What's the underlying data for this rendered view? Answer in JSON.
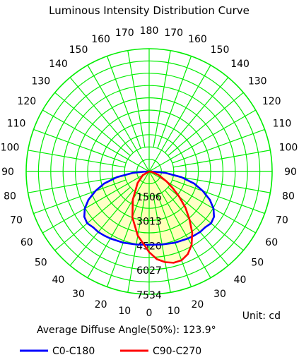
{
  "chart_data": {
    "type": "polar",
    "title": "Luminous Intensity Distribution Curve",
    "angle_labels": [
      {
        "deg": 0,
        "label": "0"
      },
      {
        "deg": 10,
        "label": "10"
      },
      {
        "deg": 20,
        "label": "20"
      },
      {
        "deg": 30,
        "label": "30"
      },
      {
        "deg": 40,
        "label": "40"
      },
      {
        "deg": 50,
        "label": "50"
      },
      {
        "deg": 60,
        "label": "60"
      },
      {
        "deg": 70,
        "label": "70"
      },
      {
        "deg": 80,
        "label": "80"
      },
      {
        "deg": 90,
        "label": "90"
      },
      {
        "deg": 100,
        "label": "100"
      },
      {
        "deg": 110,
        "label": "110"
      },
      {
        "deg": 120,
        "label": "120"
      },
      {
        "deg": 130,
        "label": "130"
      },
      {
        "deg": 140,
        "label": "140"
      },
      {
        "deg": 150,
        "label": "150"
      },
      {
        "deg": 160,
        "label": "160"
      },
      {
        "deg": 170,
        "label": "170"
      },
      {
        "deg": 180,
        "label": "180"
      }
    ],
    "radial_ticks": [
      1506,
      3013,
      4520,
      6027,
      7534
    ],
    "r_max": 7534,
    "unit_text": "Unit: cd",
    "average_diffuse_text": "Average Diffuse Angle(50%): 123.9°",
    "series": [
      {
        "name": "C0-C180",
        "color": "#0000ff",
        "points": [
          {
            "angle": -90,
            "value": 0
          },
          {
            "angle": -88,
            "value": 300
          },
          {
            "angle": -85,
            "value": 1000
          },
          {
            "angle": -80,
            "value": 2000
          },
          {
            "angle": -75,
            "value": 2850
          },
          {
            "angle": -70,
            "value": 3500
          },
          {
            "angle": -65,
            "value": 4100
          },
          {
            "angle": -60,
            "value": 4550
          },
          {
            "angle": -55,
            "value": 4850
          },
          {
            "angle": -50,
            "value": 4950
          },
          {
            "angle": -45,
            "value": 4850
          },
          {
            "angle": -40,
            "value": 4850
          },
          {
            "angle": -35,
            "value": 4800
          },
          {
            "angle": -30,
            "value": 4750
          },
          {
            "angle": -20,
            "value": 4650
          },
          {
            "angle": -10,
            "value": 4550
          },
          {
            "angle": 0,
            "value": 4500
          },
          {
            "angle": 10,
            "value": 4550
          },
          {
            "angle": 20,
            "value": 4650
          },
          {
            "angle": 30,
            "value": 4750
          },
          {
            "angle": 35,
            "value": 4800
          },
          {
            "angle": 40,
            "value": 4850
          },
          {
            "angle": 45,
            "value": 4850
          },
          {
            "angle": 50,
            "value": 4950
          },
          {
            "angle": 55,
            "value": 4850
          },
          {
            "angle": 60,
            "value": 4550
          },
          {
            "angle": 65,
            "value": 4100
          },
          {
            "angle": 70,
            "value": 3500
          },
          {
            "angle": 75,
            "value": 2850
          },
          {
            "angle": 80,
            "value": 2000
          },
          {
            "angle": 85,
            "value": 1000
          },
          {
            "angle": 88,
            "value": 300
          },
          {
            "angle": 90,
            "value": 0
          }
        ]
      },
      {
        "name": "C90-C270",
        "color": "#ff0000",
        "points": [
          {
            "angle": -90,
            "value": 0
          },
          {
            "angle": -60,
            "value": 450
          },
          {
            "angle": -45,
            "value": 1000
          },
          {
            "angle": -30,
            "value": 2000
          },
          {
            "angle": -20,
            "value": 3000
          },
          {
            "angle": -10,
            "value": 4000
          },
          {
            "angle": 0,
            "value": 4950
          },
          {
            "angle": 5,
            "value": 5400
          },
          {
            "angle": 10,
            "value": 5650
          },
          {
            "angle": 15,
            "value": 5800
          },
          {
            "angle": 20,
            "value": 5800
          },
          {
            "angle": 25,
            "value": 5600
          },
          {
            "angle": 30,
            "value": 5200
          },
          {
            "angle": 35,
            "value": 4600
          },
          {
            "angle": 40,
            "value": 3850
          },
          {
            "angle": 45,
            "value": 3150
          },
          {
            "angle": 50,
            "value": 2400
          },
          {
            "angle": 55,
            "value": 1750
          },
          {
            "angle": 60,
            "value": 1250
          },
          {
            "angle": 70,
            "value": 600
          },
          {
            "angle": 80,
            "value": 200
          },
          {
            "angle": 90,
            "value": 0
          }
        ]
      }
    ],
    "colors": {
      "grid": "#00ee00",
      "fill": "#ffffb3"
    }
  }
}
